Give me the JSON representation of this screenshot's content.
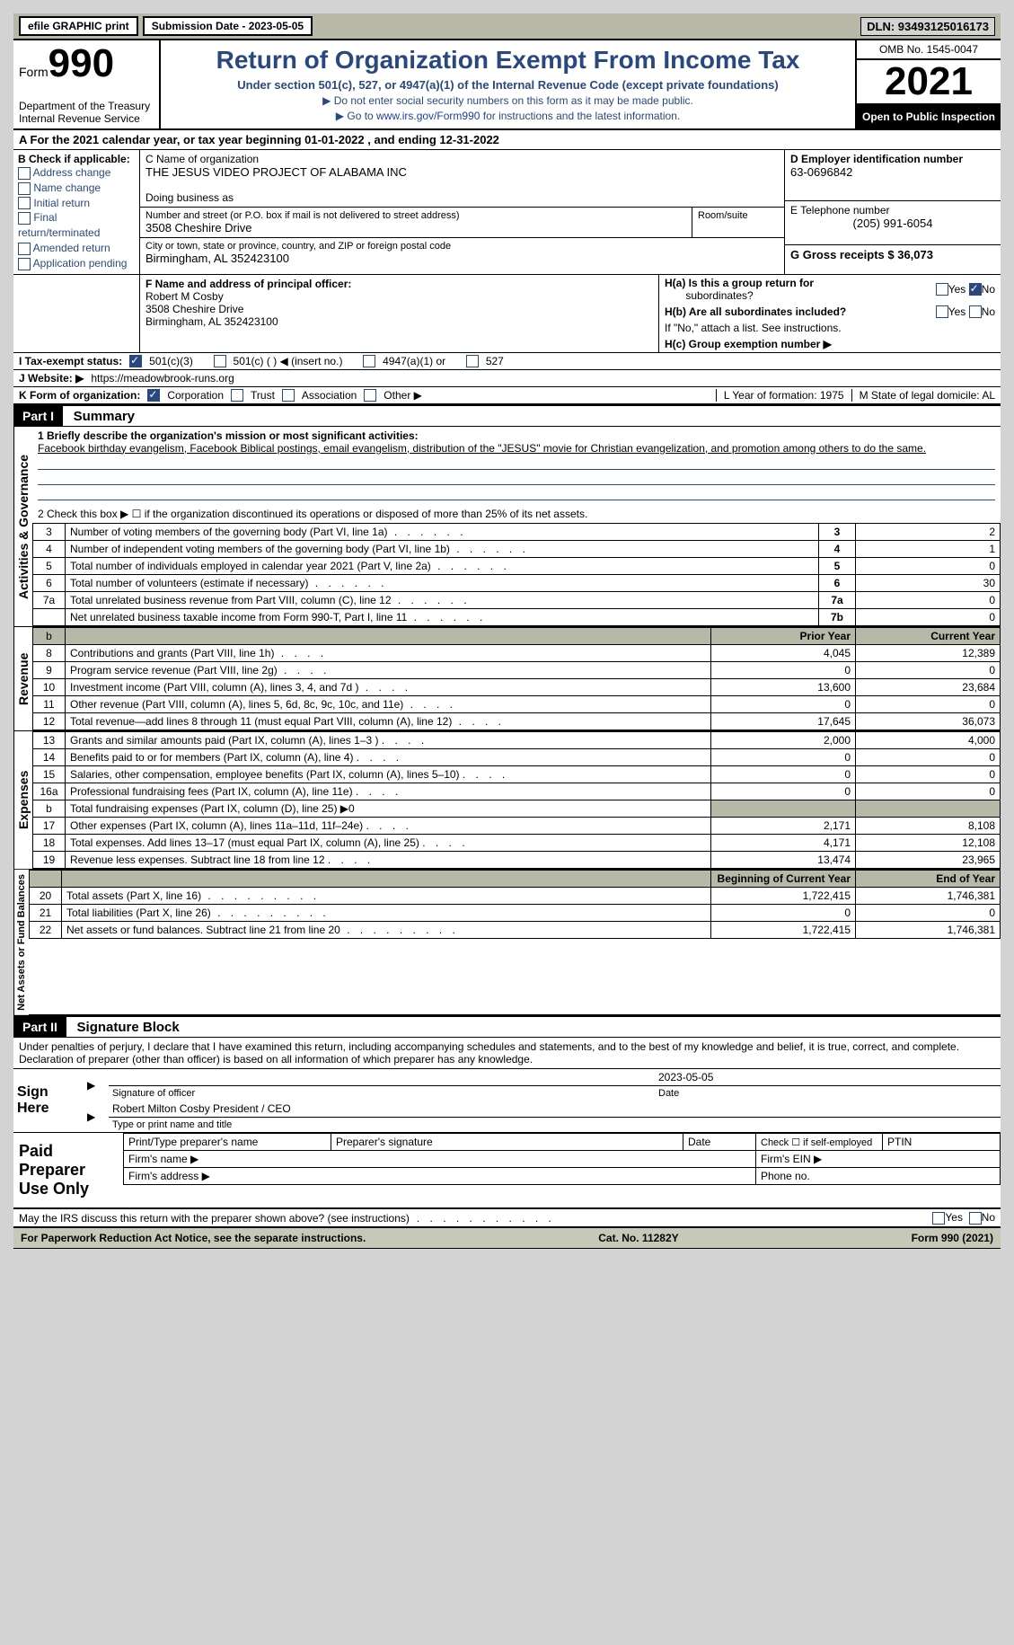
{
  "topbar": {
    "efile_label": "efile GRAPHIC print",
    "submission_label": "Submission Date - 2023-05-05",
    "dln_label": "DLN: 93493125016173"
  },
  "header": {
    "form_word": "Form",
    "form_number": "990",
    "dept": "Department of the Treasury\nInternal Revenue Service",
    "title": "Return of Organization Exempt From Income Tax",
    "subtitle": "Under section 501(c), 527, or 4947(a)(1) of the Internal Revenue Code (except private foundations)",
    "note1": "▶ Do not enter social security numbers on this form as it may be made public.",
    "note2_pre": "▶ Go to ",
    "note2_link": "www.irs.gov/Form990",
    "note2_post": " for instructions and the latest information.",
    "omb": "OMB No. 1545-0047",
    "year": "2021",
    "openpub": "Open to Public Inspection"
  },
  "sectionA": {
    "tax_year_line": "A For the 2021 calendar year, or tax year beginning 01-01-2022    , and ending 12-31-2022",
    "B_label": "B Check if applicable:",
    "b_items": [
      "Address change",
      "Name change",
      "Initial return",
      "Final return/terminated",
      "Amended return",
      "Application pending"
    ],
    "C_label": "C Name of organization",
    "org_name": "THE JESUS VIDEO PROJECT OF ALABAMA INC",
    "dba_label": "Doing business as",
    "addr_label": "Number and street (or P.O. box if mail is not delivered to street address)",
    "room_label": "Room/suite",
    "street": "3508 Cheshire Drive",
    "city_label": "City or town, state or province, country, and ZIP or foreign postal code",
    "city": "Birmingham, AL  352423100",
    "D_label": "D Employer identification number",
    "ein": "63-0696842",
    "E_label": "E Telephone number",
    "phone": "(205) 991-6054",
    "G_label": "G Gross receipts $ 36,073",
    "F_label": "F  Name and address of principal officer:",
    "officer_name": "Robert M Cosby",
    "officer_line2": "3508 Cheshire Drive",
    "officer_line3": "Birmingham, AL  352423100",
    "Ha1": "H(a)  Is this a group return for",
    "Ha2": "subordinates?",
    "Hb1": "H(b)  Are all subordinates included?",
    "Hb2": "If \"No,\" attach a list. See instructions.",
    "Hc": "H(c)  Group exemption number ▶",
    "I_label": "I  Tax-exempt status:",
    "tax_status_501c3": "501(c)(3)",
    "tax_status_501c": "501(c) (   ) ◀ (insert no.)",
    "tax_status_4947": "4947(a)(1) or",
    "tax_status_527": "527",
    "J_label": "J  Website: ▶",
    "website": "https://meadowbrook-runs.org",
    "K_label": "K Form of organization:",
    "k_opts": [
      "Corporation",
      "Trust",
      "Association",
      "Other ▶"
    ],
    "L_label": "L Year of formation: 1975",
    "M_label": "M State of legal domicile: AL",
    "yes": "Yes",
    "no": "No"
  },
  "part1": {
    "part_label": "Part I",
    "part_title": "Summary",
    "line1_label": "1  Briefly describe the organization's mission or most significant activities:",
    "mission": "Facebook birthday evangelism, Facebook Biblical postings, email evangelism, distribution of the \"JESUS\" movie for Christian evangelization, and promotion among others to do the same.",
    "line2": "2    Check this box ▶ ☐  if the organization discontinued its operations or disposed of more than 25% of its net assets.",
    "rows_ag": [
      {
        "n": "3",
        "t": "Number of voting members of the governing body (Part VI, line 1a)",
        "ref": "3",
        "v": "2"
      },
      {
        "n": "4",
        "t": "Number of independent voting members of the governing body (Part VI, line 1b)",
        "ref": "4",
        "v": "1"
      },
      {
        "n": "5",
        "t": "Total number of individuals employed in calendar year 2021 (Part V, line 2a)",
        "ref": "5",
        "v": "0"
      },
      {
        "n": "6",
        "t": "Total number of volunteers (estimate if necessary)",
        "ref": "6",
        "v": "30"
      },
      {
        "n": "7a",
        "t": "Total unrelated business revenue from Part VIII, column (C), line 12",
        "ref": "7a",
        "v": "0"
      },
      {
        "n": "",
        "t": "Net unrelated business taxable income from Form 990-T, Part I, line 11",
        "ref": "7b",
        "v": "0"
      }
    ],
    "col_prior": "Prior Year",
    "col_current": "Current Year",
    "rows_rev": [
      {
        "n": "8",
        "t": "Contributions and grants (Part VIII, line 1h)",
        "p": "4,045",
        "c": "12,389"
      },
      {
        "n": "9",
        "t": "Program service revenue (Part VIII, line 2g)",
        "p": "0",
        "c": "0"
      },
      {
        "n": "10",
        "t": "Investment income (Part VIII, column (A), lines 3, 4, and 7d )",
        "p": "13,600",
        "c": "23,684"
      },
      {
        "n": "11",
        "t": "Other revenue (Part VIII, column (A), lines 5, 6d, 8c, 9c, 10c, and 11e)",
        "p": "0",
        "c": "0"
      },
      {
        "n": "12",
        "t": "Total revenue—add lines 8 through 11 (must equal Part VIII, column (A), line 12)",
        "p": "17,645",
        "c": "36,073"
      }
    ],
    "rows_exp": [
      {
        "n": "13",
        "t": "Grants and similar amounts paid (Part IX, column (A), lines 1–3 )",
        "p": "2,000",
        "c": "4,000"
      },
      {
        "n": "14",
        "t": "Benefits paid to or for members (Part IX, column (A), line 4)",
        "p": "0",
        "c": "0"
      },
      {
        "n": "15",
        "t": "Salaries, other compensation, employee benefits (Part IX, column (A), lines 5–10)",
        "p": "0",
        "c": "0"
      },
      {
        "n": "16a",
        "t": "Professional fundraising fees (Part IX, column (A), line 11e)",
        "p": "0",
        "c": "0"
      },
      {
        "n": "b",
        "t": "Total fundraising expenses (Part IX, column (D), line 25) ▶0",
        "p": "",
        "c": "",
        "gray": true
      },
      {
        "n": "17",
        "t": "Other expenses (Part IX, column (A), lines 11a–11d, 11f–24e)",
        "p": "2,171",
        "c": "8,108"
      },
      {
        "n": "18",
        "t": "Total expenses. Add lines 13–17 (must equal Part IX, column (A), line 25)",
        "p": "4,171",
        "c": "12,108"
      },
      {
        "n": "19",
        "t": "Revenue less expenses. Subtract line 18 from line 12",
        "p": "13,474",
        "c": "23,965"
      }
    ],
    "col_begin": "Beginning of Current Year",
    "col_end": "End of Year",
    "rows_na": [
      {
        "n": "20",
        "t": "Total assets (Part X, line 16)",
        "p": "1,722,415",
        "c": "1,746,381"
      },
      {
        "n": "21",
        "t": "Total liabilities (Part X, line 26)",
        "p": "0",
        "c": "0"
      },
      {
        "n": "22",
        "t": "Net assets or fund balances. Subtract line 21 from line 20",
        "p": "1,722,415",
        "c": "1,746,381"
      }
    ],
    "side_ag": "Activities & Governance",
    "side_rev": "Revenue",
    "side_exp": "Expenses",
    "side_na": "Net Assets or Fund Balances"
  },
  "part2": {
    "part_label": "Part II",
    "part_title": "Signature Block",
    "penalty": "Under penalties of perjury, I declare that I have examined this return, including accompanying schedules and statements, and to the best of my knowledge and belief, it is true, correct, and complete. Declaration of preparer (other than officer) is based on all information of which preparer has any knowledge.",
    "sign_here": "Sign Here",
    "sig_officer": "Signature of officer",
    "sig_date": "Date",
    "sig_date_val": "2023-05-05",
    "officer": "Robert Milton Cosby  President / CEO",
    "type_name": "Type or print name and title",
    "paid_prep": "Paid Preparer Use Only",
    "pp_name": "Print/Type preparer's name",
    "pp_sig": "Preparer's signature",
    "pp_date": "Date",
    "pp_check": "Check ☐ if self-employed",
    "pp_ptin": "PTIN",
    "firm_name": "Firm's name    ▶",
    "firm_ein": "Firm's EIN ▶",
    "firm_addr": "Firm's address ▶",
    "firm_phone": "Phone no.",
    "discuss": "May the IRS discuss this return with the preparer shown above? (see instructions)"
  },
  "footer": {
    "pra": "For Paperwork Reduction Act Notice, see the separate instructions.",
    "cat": "Cat. No. 11282Y",
    "form": "Form 990 (2021)"
  }
}
